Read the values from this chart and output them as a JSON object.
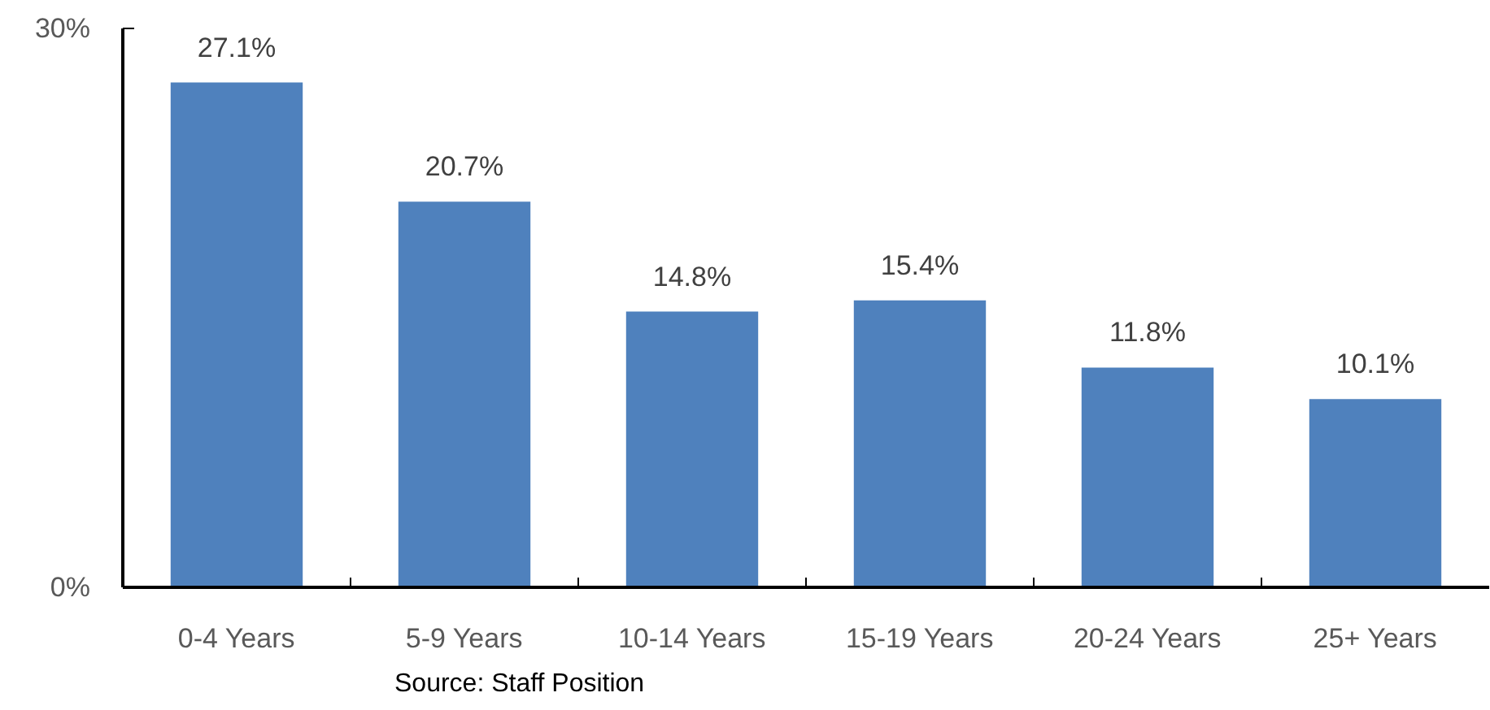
{
  "chart_data": {
    "type": "bar",
    "categories": [
      "0-4 Years",
      "5-9 Years",
      "10-14 Years",
      "15-19 Years",
      "20-24 Years",
      "25+ Years"
    ],
    "values": [
      27.1,
      20.7,
      14.8,
      15.4,
      11.8,
      10.1
    ],
    "value_labels": [
      "27.1%",
      "20.7%",
      "14.8%",
      "15.4%",
      "11.8%",
      "10.1%"
    ],
    "color": "#4f81bd",
    "ylim": [
      0,
      30
    ],
    "yticks": [
      {
        "value": 0,
        "label": "0%"
      },
      {
        "value": 30,
        "label": "30%"
      }
    ],
    "grid": false,
    "annotations": [
      "Source: Staff Position"
    ]
  }
}
